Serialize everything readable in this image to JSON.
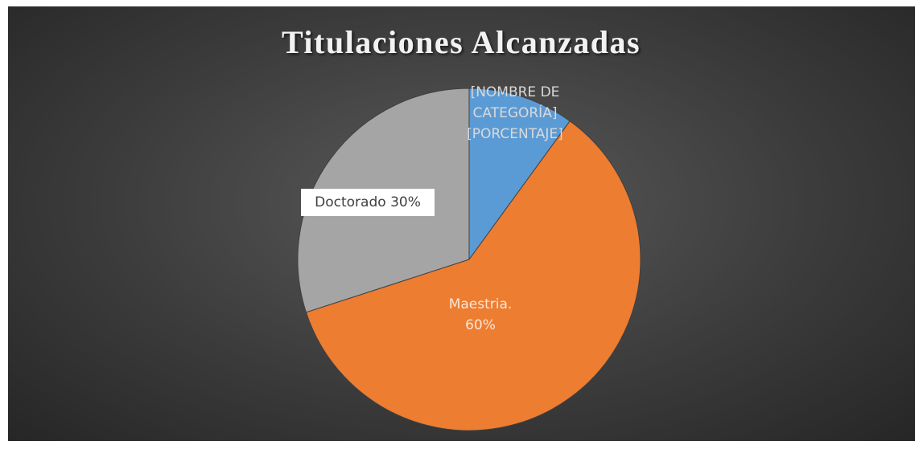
{
  "chart_data": {
    "type": "pie",
    "title": "Titulaciones Alcanzadas",
    "categories": [
      "[NOMBRE DE CATEGORÍA]",
      "Maestria.",
      "Doctorado"
    ],
    "values": [
      10,
      60,
      30
    ],
    "value_labels": [
      "[PORCENTAJE]",
      "60%",
      "30%"
    ],
    "colors": [
      "#5b9bd5",
      "#ed7d31",
      "#a5a5a5"
    ]
  }
}
